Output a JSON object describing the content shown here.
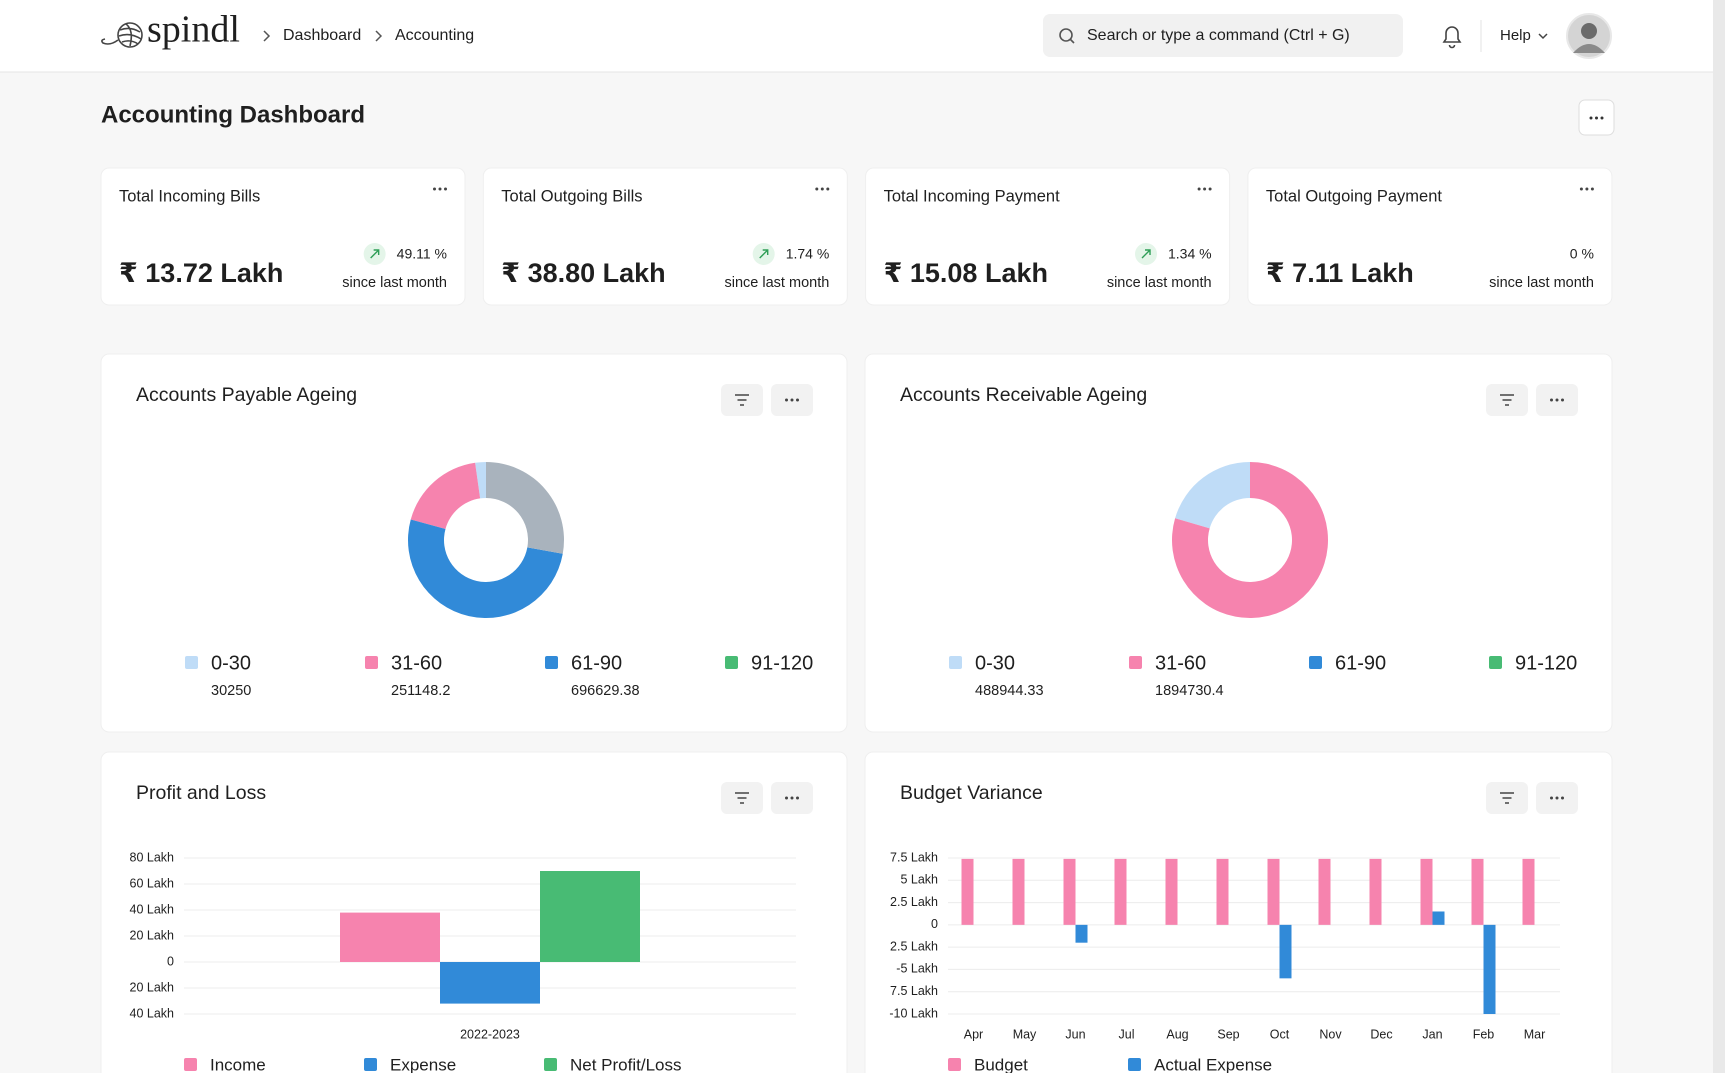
{
  "header": {
    "logo": "spindl",
    "breadcrumbs": [
      "Dashboard",
      "Accounting"
    ],
    "search_placeholder": "Search or type a command (Ctrl + G)",
    "help": "Help"
  },
  "page_title": "Accounting Dashboard",
  "cards": [
    {
      "title": "Total Incoming Bills",
      "amount": "₹ 13.72 Lakh",
      "change": "49.11 %",
      "note": "since last month",
      "trend": "up"
    },
    {
      "title": "Total Outgoing Bills",
      "amount": "₹ 38.80 Lakh",
      "change": "1.74 %",
      "note": "since last month",
      "trend": "up"
    },
    {
      "title": "Total Incoming Payment",
      "amount": "₹ 15.08 Lakh",
      "change": "1.34 %",
      "note": "since last month",
      "trend": "up"
    },
    {
      "title": "Total Outgoing Payment",
      "amount": "₹ 7.11 Lakh",
      "change": "0 %",
      "note": "since last month",
      "trend": "flat"
    }
  ],
  "panels": [
    {
      "title": "Accounts Payable Ageing",
      "type": "donut",
      "legend": [
        {
          "name": "0-30",
          "color": "#bfdcf7",
          "value": 30250
        },
        {
          "name": "31-60",
          "color": "#f683ae",
          "value": 251148.2
        },
        {
          "name": "61-90",
          "color": "#318ad8",
          "value": 696629.38
        },
        {
          "name": "91-120",
          "color": "#48bb74"
        }
      ],
      "unlabeled_slices": [
        {
          "color": "#a9b3bd",
          "value": 377000
        }
      ]
    },
    {
      "title": "Accounts Receivable Ageing",
      "type": "donut",
      "legend": [
        {
          "name": "0-30",
          "color": "#bfdcf7",
          "value": 488944.33
        },
        {
          "name": "31-60",
          "color": "#f683ae",
          "value": 1894730.4
        },
        {
          "name": "61-90",
          "color": "#318ad8"
        },
        {
          "name": "91-120",
          "color": "#48bb74"
        }
      ],
      "unlabeled_slices": []
    },
    {
      "title": "Profit and Loss",
      "type": "bar",
      "categories": [
        "2022-2023"
      ],
      "series": [
        {
          "name": "Income",
          "color": "#f683ae",
          "values": [
            38
          ]
        },
        {
          "name": "Expense",
          "color": "#318ad8",
          "values": [
            -32
          ]
        },
        {
          "name": "Net Profit/Loss",
          "color": "#48bb74",
          "values": [
            70
          ]
        }
      ],
      "ylim": [
        -40,
        80
      ],
      "yticks": [
        {
          "value": 80,
          "label": "80 Lakh"
        },
        {
          "value": 60,
          "label": "60 Lakh"
        },
        {
          "value": 40,
          "label": "40 Lakh"
        },
        {
          "value": 20,
          "label": "20 Lakh"
        },
        0,
        {
          "value": -20,
          "label": "20 Lakh"
        },
        {
          "value": -40,
          "label": "40 Lakh"
        }
      ],
      "grid": true
    },
    {
      "title": "Budget Variance",
      "type": "bar",
      "categories": [
        "Apr",
        "May",
        "Jun",
        "Jul",
        "Aug",
        "Sep",
        "Oct",
        "Nov",
        "Dec",
        "Jan",
        "Feb",
        "Mar"
      ],
      "series": [
        {
          "name": "Budget",
          "color": "#f683ae",
          "values": [
            7.4,
            7.4,
            7.4,
            7.4,
            7.4,
            7.4,
            7.4,
            7.4,
            7.4,
            7.4,
            7.4,
            7.4
          ]
        },
        {
          "name": "Actual Expense",
          "color": "#318ad8",
          "values": [
            0,
            0,
            -2,
            0,
            0,
            0,
            -6,
            0,
            0,
            1.5,
            -10,
            0
          ]
        }
      ],
      "ylim": [
        -10,
        7.5
      ],
      "yticks": [
        {
          "value": 7.5,
          "label": "7.5 Lakh"
        },
        {
          "value": 5,
          "label": "5 Lakh"
        },
        {
          "value": 2.5,
          "label": "2.5 Lakh"
        },
        0,
        {
          "value": -2.5,
          "label": "2.5 Lakh"
        },
        {
          "value": -5,
          "label": "-5 Lakh"
        },
        {
          "value": -7.5,
          "label": "7.5 Lakh"
        },
        {
          "value": -10,
          "label": "-10 Lakh"
        }
      ],
      "grid": true
    }
  ]
}
